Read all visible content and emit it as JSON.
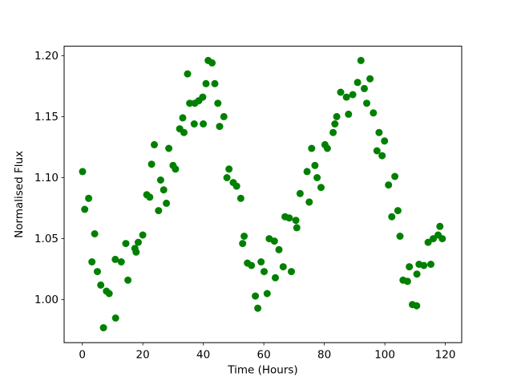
{
  "figure": {
    "background": "#ffffff"
  },
  "chart_data": {
    "type": "scatter",
    "title": "",
    "xlabel": "Time (Hours)",
    "ylabel": "Normalised Flux",
    "xticks": [
      0,
      20,
      40,
      60,
      80,
      100,
      120
    ],
    "yticks": [
      1.0,
      1.05,
      1.1,
      1.15,
      1.2
    ],
    "ytick_labels": [
      "1.00",
      "1.05",
      "1.10",
      "1.15",
      "1.20"
    ],
    "xlim": [
      -6.0,
      125.4
    ],
    "ylim": [
      0.9648,
      1.2077
    ],
    "grid": false,
    "legend": "none",
    "marker": {
      "shape": "circle",
      "color": "#008000",
      "radius": 4.5
    },
    "axis_color": "#000000",
    "points": [
      [
        0.1,
        1.105
      ],
      [
        0.8,
        1.074
      ],
      [
        2.1,
        1.083
      ],
      [
        3.2,
        1.031
      ],
      [
        4.1,
        1.054
      ],
      [
        5.0,
        1.023
      ],
      [
        6.1,
        1.012
      ],
      [
        7.0,
        0.977
      ],
      [
        8.0,
        1.007
      ],
      [
        8.9,
        1.005
      ],
      [
        10.9,
        1.033
      ],
      [
        11.0,
        0.985
      ],
      [
        12.9,
        1.031
      ],
      [
        14.4,
        1.046
      ],
      [
        15.1,
        1.016
      ],
      [
        17.4,
        1.042
      ],
      [
        17.8,
        1.039
      ],
      [
        18.5,
        1.047
      ],
      [
        20.0,
        1.053
      ],
      [
        21.3,
        1.086
      ],
      [
        22.3,
        1.084
      ],
      [
        22.9,
        1.111
      ],
      [
        23.8,
        1.127
      ],
      [
        25.2,
        1.073
      ],
      [
        25.9,
        1.098
      ],
      [
        26.9,
        1.09
      ],
      [
        27.8,
        1.079
      ],
      [
        28.6,
        1.124
      ],
      [
        30.0,
        1.11
      ],
      [
        30.8,
        1.107
      ],
      [
        32.2,
        1.14
      ],
      [
        33.2,
        1.149
      ],
      [
        33.6,
        1.137
      ],
      [
        34.8,
        1.185
      ],
      [
        35.5,
        1.161
      ],
      [
        37.0,
        1.144
      ],
      [
        37.2,
        1.161
      ],
      [
        38.5,
        1.163
      ],
      [
        39.8,
        1.166
      ],
      [
        40.0,
        1.144
      ],
      [
        40.9,
        1.177
      ],
      [
        41.6,
        1.196
      ],
      [
        42.9,
        1.194
      ],
      [
        43.8,
        1.177
      ],
      [
        44.8,
        1.161
      ],
      [
        45.4,
        1.142
      ],
      [
        46.8,
        1.15
      ],
      [
        47.8,
        1.1
      ],
      [
        48.5,
        1.107
      ],
      [
        49.9,
        1.096
      ],
      [
        51.0,
        1.093
      ],
      [
        52.4,
        1.083
      ],
      [
        53.0,
        1.046
      ],
      [
        53.5,
        1.052
      ],
      [
        54.6,
        1.03
      ],
      [
        55.9,
        1.028
      ],
      [
        57.2,
        1.003
      ],
      [
        58.0,
        0.993
      ],
      [
        59.1,
        1.031
      ],
      [
        60.1,
        1.023
      ],
      [
        61.1,
        1.005
      ],
      [
        61.8,
        1.05
      ],
      [
        63.5,
        1.048
      ],
      [
        63.8,
        1.018
      ],
      [
        65.0,
        1.041
      ],
      [
        66.4,
        1.027
      ],
      [
        67.0,
        1.068
      ],
      [
        68.4,
        1.067
      ],
      [
        69.1,
        1.023
      ],
      [
        70.6,
        1.065
      ],
      [
        70.9,
        1.059
      ],
      [
        72.0,
        1.087
      ],
      [
        74.3,
        1.105
      ],
      [
        75.0,
        1.08
      ],
      [
        75.8,
        1.124
      ],
      [
        76.9,
        1.11
      ],
      [
        77.6,
        1.1
      ],
      [
        78.9,
        1.092
      ],
      [
        80.2,
        1.127
      ],
      [
        81.0,
        1.124
      ],
      [
        82.9,
        1.137
      ],
      [
        83.5,
        1.144
      ],
      [
        84.1,
        1.15
      ],
      [
        85.4,
        1.17
      ],
      [
        87.3,
        1.166
      ],
      [
        88.0,
        1.152
      ],
      [
        89.4,
        1.168
      ],
      [
        91.0,
        1.178
      ],
      [
        92.1,
        1.196
      ],
      [
        93.2,
        1.173
      ],
      [
        94.0,
        1.161
      ],
      [
        95.1,
        1.181
      ],
      [
        96.2,
        1.153
      ],
      [
        97.4,
        1.122
      ],
      [
        98.1,
        1.137
      ],
      [
        99.1,
        1.118
      ],
      [
        99.9,
        1.13
      ],
      [
        101.2,
        1.094
      ],
      [
        102.3,
        1.068
      ],
      [
        103.3,
        1.101
      ],
      [
        104.3,
        1.073
      ],
      [
        105.0,
        1.052
      ],
      [
        106.0,
        1.016
      ],
      [
        107.5,
        1.015
      ],
      [
        108.1,
        1.027
      ],
      [
        109.1,
        0.996
      ],
      [
        110.5,
        0.995
      ],
      [
        110.6,
        1.021
      ],
      [
        111.3,
        1.029
      ],
      [
        112.9,
        1.028
      ],
      [
        114.3,
        1.047
      ],
      [
        115.2,
        1.029
      ],
      [
        116.0,
        1.05
      ],
      [
        117.6,
        1.053
      ],
      [
        118.2,
        1.06
      ],
      [
        119.0,
        1.05
      ]
    ]
  }
}
